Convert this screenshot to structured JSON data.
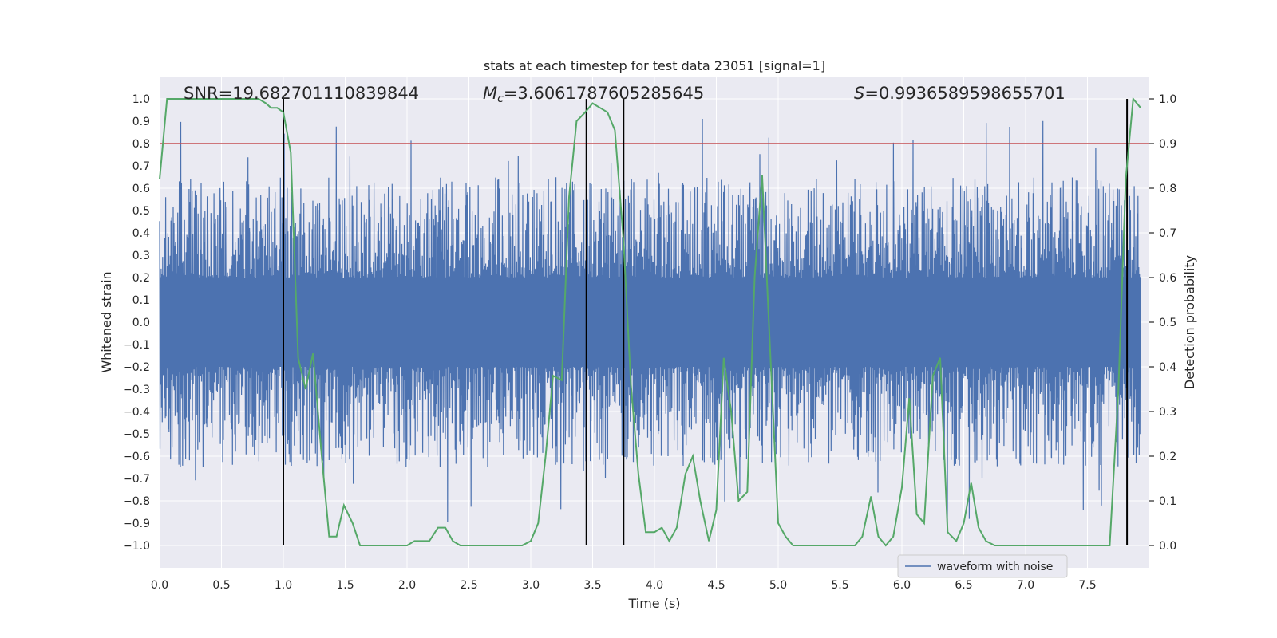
{
  "chart_data": {
    "type": "line",
    "title": "stats at each timestep for test data 23051 [signal=1]",
    "xlabel": "Time (s)",
    "ylabel_left": "Whitened strain",
    "ylabel_right": "Detection probability",
    "xlim": [
      0.0,
      8.0
    ],
    "ylim_left": [
      -1.1,
      1.1
    ],
    "ylim_right": [
      -0.05,
      1.05
    ],
    "x_ticks": [
      "0.0",
      "0.5",
      "1.0",
      "1.5",
      "2.0",
      "2.5",
      "3.0",
      "3.5",
      "4.0",
      "4.5",
      "5.0",
      "5.5",
      "6.0",
      "6.5",
      "7.0",
      "7.5"
    ],
    "y_ticks_left": [
      "1.0",
      "0.9",
      "0.8",
      "0.7",
      "0.6",
      "0.5",
      "0.4",
      "0.3",
      "0.2",
      "0.1",
      "0.0",
      "−0.1",
      "−0.2",
      "−0.3",
      "−0.4",
      "−0.5",
      "−0.6",
      "−0.7",
      "−0.8",
      "−0.9",
      "−1.0"
    ],
    "y_ticks_right": [
      "1.0",
      "0.9",
      "0.8",
      "0.7",
      "0.6",
      "0.5",
      "0.4",
      "0.3",
      "0.2",
      "0.1",
      "0.0"
    ],
    "grid": true,
    "legend": {
      "position": "lower-right",
      "entries": [
        "waveform with noise"
      ]
    },
    "annotations": {
      "snr": "SNR=19.682701110839844",
      "mc_symbol": "M",
      "mc_sub": "c",
      "mc_value": "=3.6061787605285645",
      "s_symbol": "S",
      "s_value": "=0.9936589598655701"
    },
    "threshold": {
      "value": 0.9,
      "axis": "right",
      "color": "#c44e52"
    },
    "vertical_lines": [
      1.0,
      3.45,
      3.75,
      7.82
    ],
    "series": [
      {
        "name": "waveform with noise",
        "axis": "left",
        "color": "#4c72b0",
        "description": "dense whitened strain noise, envelope roughly between -0.7 and 0.7 with sparse spikes near ±0.9",
        "sample_rate_hz": 512
      },
      {
        "axis": "right",
        "color": "#55a868",
        "x": [
          0.0,
          0.06,
          0.1,
          0.2,
          0.3,
          0.4,
          0.5,
          0.6,
          0.7,
          0.8,
          0.86,
          0.9,
          0.95,
          1.0,
          1.06,
          1.12,
          1.18,
          1.24,
          1.31,
          1.37,
          1.43,
          1.49,
          1.56,
          1.62,
          1.68,
          1.75,
          1.81,
          1.87,
          1.93,
          2.0,
          2.06,
          2.12,
          2.18,
          2.25,
          2.31,
          2.37,
          2.43,
          2.5,
          2.56,
          2.62,
          2.68,
          2.75,
          2.81,
          2.87,
          2.93,
          3.0,
          3.06,
          3.12,
          3.18,
          3.25,
          3.31,
          3.37,
          3.44,
          3.5,
          3.56,
          3.62,
          3.68,
          3.75,
          3.81,
          3.87,
          3.93,
          4.0,
          4.06,
          4.12,
          4.18,
          4.25,
          4.31,
          4.37,
          4.44,
          4.5,
          4.56,
          4.62,
          4.68,
          4.75,
          4.81,
          4.87,
          4.93,
          5.0,
          5.06,
          5.12,
          5.18,
          5.25,
          5.31,
          5.37,
          5.44,
          5.5,
          5.56,
          5.62,
          5.68,
          5.75,
          5.81,
          5.87,
          5.93,
          6.0,
          6.06,
          6.12,
          6.18,
          6.25,
          6.31,
          6.37,
          6.44,
          6.5,
          6.56,
          6.62,
          6.68,
          6.75,
          6.81,
          6.87,
          6.93,
          7.0,
          7.06,
          7.12,
          7.18,
          7.25,
          7.31,
          7.37,
          7.44,
          7.5,
          7.56,
          7.62,
          7.68,
          7.75,
          7.81,
          7.87,
          7.93
        ],
        "values": [
          0.82,
          1.0,
          1.0,
          1.0,
          1.0,
          1.0,
          1.0,
          1.0,
          1.0,
          1.0,
          0.99,
          0.98,
          0.98,
          0.97,
          0.88,
          0.42,
          0.35,
          0.43,
          0.2,
          0.02,
          0.02,
          0.09,
          0.05,
          0.0,
          0.0,
          0.0,
          0.0,
          0.0,
          0.0,
          0.0,
          0.01,
          0.01,
          0.01,
          0.04,
          0.04,
          0.01,
          0.0,
          0.0,
          0.0,
          0.0,
          0.0,
          0.0,
          0.0,
          0.0,
          0.0,
          0.01,
          0.05,
          0.2,
          0.38,
          0.37,
          0.78,
          0.95,
          0.97,
          0.99,
          0.98,
          0.97,
          0.93,
          0.68,
          0.36,
          0.16,
          0.03,
          0.03,
          0.04,
          0.01,
          0.04,
          0.16,
          0.2,
          0.1,
          0.01,
          0.08,
          0.42,
          0.3,
          0.1,
          0.12,
          0.6,
          0.83,
          0.47,
          0.05,
          0.02,
          0.0,
          0.0,
          0.0,
          0.0,
          0.0,
          0.0,
          0.0,
          0.0,
          0.0,
          0.02,
          0.11,
          0.02,
          0.0,
          0.02,
          0.13,
          0.33,
          0.07,
          0.05,
          0.38,
          0.42,
          0.03,
          0.01,
          0.05,
          0.14,
          0.04,
          0.01,
          0.0,
          0.0,
          0.0,
          0.0,
          0.0,
          0.0,
          0.0,
          0.0,
          0.0,
          0.0,
          0.0,
          0.0,
          0.0,
          0.0,
          0.0,
          0.0,
          0.35,
          0.82,
          1.0,
          0.98
        ]
      }
    ]
  }
}
